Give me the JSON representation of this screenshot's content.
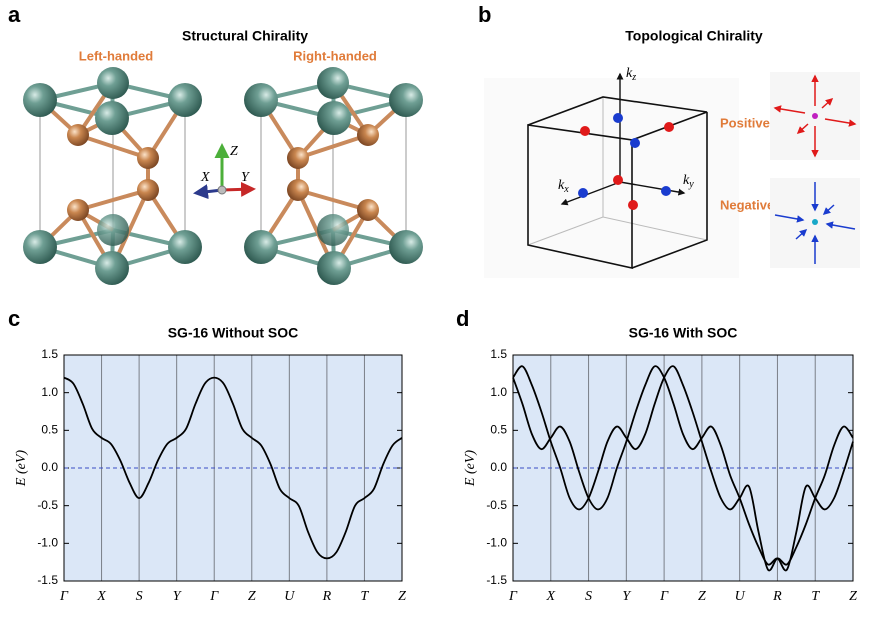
{
  "panels": {
    "a": {
      "label": "a",
      "title": "Structural Chirality",
      "left_title": "Left-handed",
      "right_title": "Right-handed",
      "axis_labels": [
        "Z",
        "X",
        "Y"
      ]
    },
    "b": {
      "label": "b",
      "title": "Topological Chirality",
      "axis_labels": [
        {
          "symbol": "k",
          "subscript": "z"
        },
        {
          "symbol": "k",
          "subscript": "x"
        },
        {
          "symbol": "k",
          "subscript": "y"
        }
      ],
      "positive": "Positive",
      "negative": "Negative"
    },
    "c": {
      "label": "c"
    },
    "d": {
      "label": "d"
    }
  },
  "chart_data": [
    {
      "type": "line",
      "title": "SG-16 Without SOC",
      "y_label": "E (eV)",
      "x": [
        0,
        0.25,
        0.5,
        0.75,
        1,
        1.25,
        1.5,
        1.75,
        2,
        2.25,
        2.5,
        2.75,
        3,
        3.25,
        3.5,
        3.75,
        4,
        4.25,
        4.5,
        4.75,
        5,
        5.25,
        5.5,
        5.75,
        6,
        6.25,
        6.5,
        6.75,
        7,
        7.25,
        7.5,
        7.75,
        8,
        8.25,
        8.5,
        8.75,
        9
      ],
      "xlim": [
        0,
        9
      ],
      "xticks": [
        {
          "value": 0,
          "label": "Γ"
        },
        {
          "value": 1,
          "label": "X"
        },
        {
          "value": 2,
          "label": "S"
        },
        {
          "value": 3,
          "label": "Y"
        },
        {
          "value": 4,
          "label": "Γ"
        },
        {
          "value": 5,
          "label": "Z"
        },
        {
          "value": 6,
          "label": "U"
        },
        {
          "value": 7,
          "label": "R"
        },
        {
          "value": 8,
          "label": "T"
        },
        {
          "value": 9,
          "label": "Z"
        }
      ],
      "ylim": [
        -1.5,
        1.5
      ],
      "yticks": [
        1.5,
        {
          "value": 1,
          "label": "1.0"
        },
        0.5,
        {
          "value": 0,
          "label": "0.0"
        },
        -0.5,
        {
          "value": -1,
          "label": "-1.0"
        },
        -1.5
      ],
      "grid": true,
      "background": "#dbe7f7",
      "reference_line": {
        "value": 0,
        "color": "#3a4cc4"
      },
      "series": [
        {
          "color": "#000000",
          "values": [
            1.2,
            1.12,
            0.85,
            0.52,
            0.4,
            0.32,
            0.1,
            -0.2,
            -0.4,
            -0.2,
            0.1,
            0.32,
            0.4,
            0.52,
            0.85,
            1.12,
            1.2,
            1.12,
            0.85,
            0.52,
            0.4,
            0.3,
            0.05,
            -0.28,
            -0.4,
            -0.5,
            -0.85,
            -1.12,
            -1.2,
            -1.12,
            -0.85,
            -0.5,
            -0.4,
            -0.28,
            0.05,
            0.3,
            0.4
          ]
        }
      ]
    },
    {
      "type": "line",
      "title": "SG-16 With SOC",
      "y_label": "E (eV)",
      "x": [
        0,
        0.25,
        0.5,
        0.75,
        1,
        1.25,
        1.5,
        1.75,
        2,
        2.25,
        2.5,
        2.75,
        3,
        3.25,
        3.5,
        3.75,
        4,
        4.25,
        4.5,
        4.75,
        5,
        5.25,
        5.5,
        5.75,
        6,
        6.25,
        6.5,
        6.75,
        7,
        7.25,
        7.5,
        7.75,
        8,
        8.25,
        8.5,
        8.75,
        9
      ],
      "xlim": [
        0,
        9
      ],
      "xticks": [
        {
          "value": 0,
          "label": "Γ"
        },
        {
          "value": 1,
          "label": "X"
        },
        {
          "value": 2,
          "label": "S"
        },
        {
          "value": 3,
          "label": "Y"
        },
        {
          "value": 4,
          "label": "Γ"
        },
        {
          "value": 5,
          "label": "Z"
        },
        {
          "value": 6,
          "label": "U"
        },
        {
          "value": 7,
          "label": "R"
        },
        {
          "value": 8,
          "label": "T"
        },
        {
          "value": 9,
          "label": "Z"
        }
      ],
      "ylim": [
        -1.5,
        1.5
      ],
      "yticks": [
        1.5,
        {
          "value": 1,
          "label": "1.0"
        },
        0.5,
        {
          "value": 0,
          "label": "0.0"
        },
        -0.5,
        {
          "value": -1,
          "label": "-1.0"
        },
        -1.5
      ],
      "grid": true,
      "background": "#dbe7f7",
      "reference_line": {
        "value": 0,
        "color": "#3a4cc4"
      },
      "series": [
        {
          "color": "#000000",
          "values": [
            1.2,
            1.35,
            1.1,
            0.75,
            0.35,
            0,
            -0.4,
            -0.55,
            -0.4,
            -0.05,
            0.35,
            0.55,
            0.4,
            0.25,
            0.45,
            0.85,
            1.2,
            1.35,
            1.1,
            0.75,
            0.35,
            -0.05,
            -0.4,
            -0.55,
            -0.4,
            -0.25,
            -0.85,
            -1.35,
            -1.2,
            -1.28,
            -1.05,
            -0.75,
            -0.4,
            -0.1,
            0.3,
            0.55,
            0.4
          ]
        },
        {
          "color": "#000000",
          "values": [
            1.2,
            0.85,
            0.45,
            0.25,
            0.4,
            0.55,
            0.35,
            -0.05,
            -0.4,
            -0.55,
            -0.4,
            0,
            0.35,
            0.75,
            1.1,
            1.35,
            1.2,
            0.85,
            0.45,
            0.25,
            0.4,
            0.55,
            0.3,
            -0.1,
            -0.4,
            -0.75,
            -1.05,
            -1.28,
            -1.2,
            -1.35,
            -0.85,
            -0.25,
            -0.4,
            -0.55,
            -0.4,
            -0.05,
            0.35
          ]
        }
      ]
    }
  ]
}
